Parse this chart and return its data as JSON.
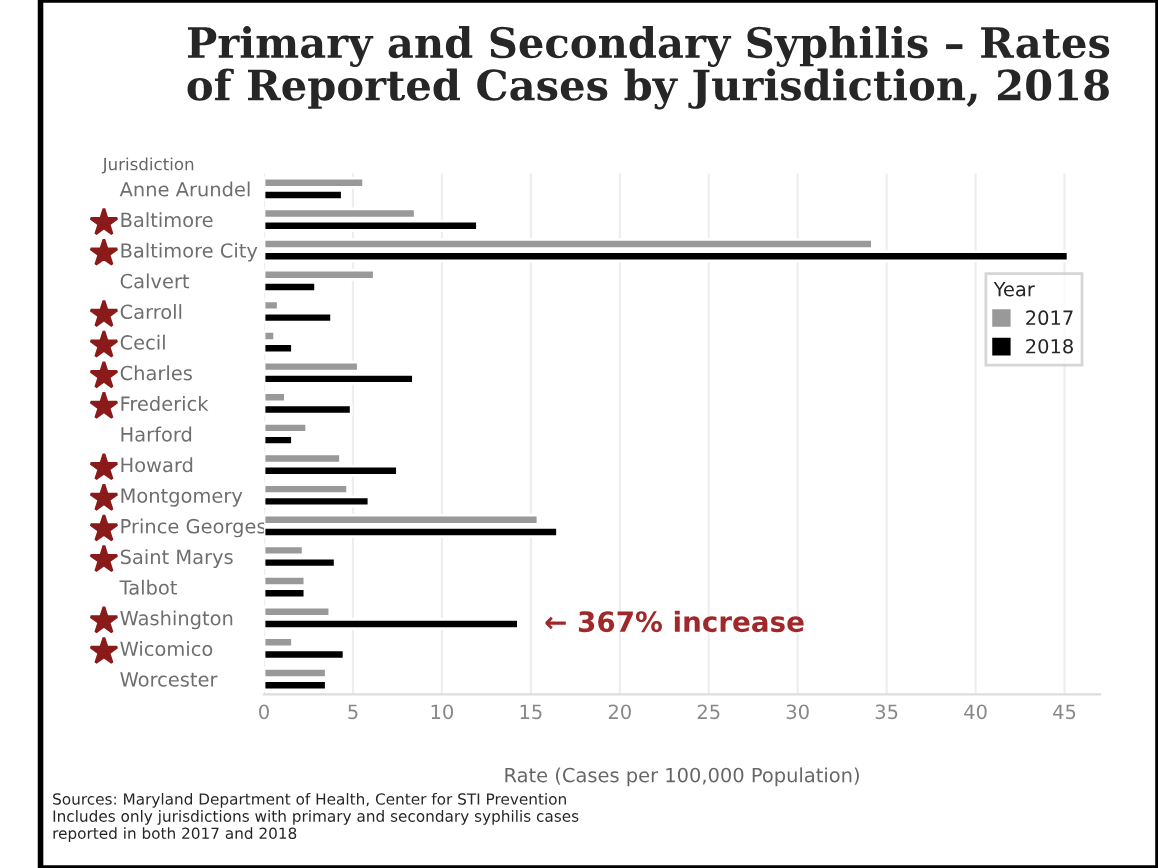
{
  "chart_data": {
    "type": "bar",
    "orientation": "horizontal",
    "title": "Primary and Secondary Syphilis – Rates\nof Reported Cases by Jurisdiction, 2018",
    "xlabel": "Rate (Cases per 100,000 Population)",
    "ylabel": "Jurisdiction",
    "legend_title": "Year",
    "categories": [
      "Anne Arundel",
      "Baltimore",
      "Baltimore City",
      "Calvert",
      "Carroll",
      "Cecil",
      "Charles",
      "Frederick",
      "Harford",
      "Howard",
      "Montgomery",
      "Prince Georges",
      "Saint Marys",
      "Talbot",
      "Washington",
      "Wicomico",
      "Worcester"
    ],
    "series": [
      {
        "name": "2017",
        "color": "#999999",
        "values": [
          5.6,
          8.5,
          34.2,
          6.2,
          0.8,
          0.6,
          5.3,
          1.2,
          2.4,
          4.3,
          4.7,
          15.4,
          2.2,
          2.3,
          3.7,
          1.6,
          3.5
        ]
      },
      {
        "name": "2018",
        "color": "#000000",
        "values": [
          4.4,
          12.0,
          45.2,
          2.9,
          3.8,
          1.6,
          8.4,
          4.9,
          1.6,
          7.5,
          5.9,
          16.5,
          4.0,
          2.3,
          14.3,
          4.5,
          3.5
        ]
      }
    ],
    "xlim": [
      0,
      47
    ],
    "xticks": [
      0,
      5,
      10,
      15,
      20,
      25,
      30,
      35,
      40,
      45
    ],
    "grid": "x",
    "legend": "right",
    "annotations": [
      "← 367% increase",
      "Sources: Maryland Department of Health, Center for STI Prevention\nIncludes only jurisdictions with primary and secondary syphilis cases\nreported in both 2017 and 2018"
    ]
  }
}
